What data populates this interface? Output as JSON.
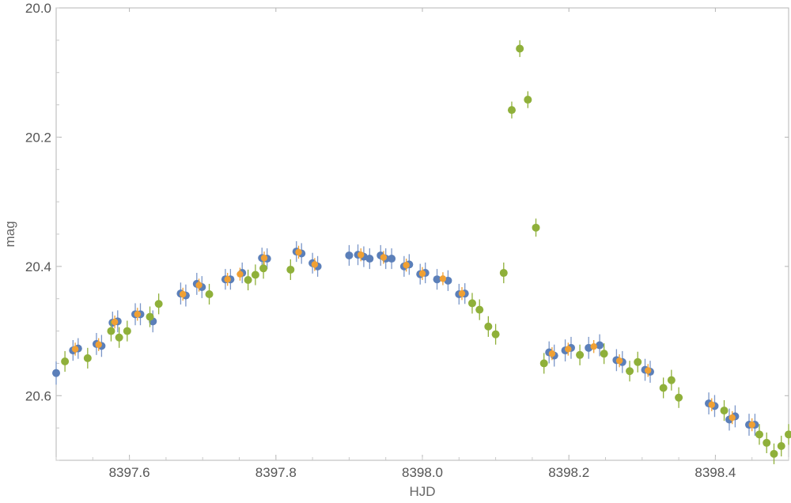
{
  "chart_data": {
    "type": "scatter",
    "title": "",
    "xlabel": "HJD",
    "ylabel": "mag",
    "xlim": [
      8397.5,
      8398.5
    ],
    "ylim": [
      20.0,
      20.7
    ],
    "y_reversed": true,
    "x_ticks": [
      {
        "value": 8397.6,
        "label": "8397.6"
      },
      {
        "value": 8397.8,
        "label": "8397.8"
      },
      {
        "value": 8398.0,
        "label": "8398.0"
      },
      {
        "value": 8398.2,
        "label": "8398.2"
      },
      {
        "value": 8398.4,
        "label": "8398.4"
      }
    ],
    "y_ticks": [
      {
        "value": 20.0,
        "label": "20.0"
      },
      {
        "value": 20.2,
        "label": "20.2"
      },
      {
        "value": 20.4,
        "label": "20.4"
      },
      {
        "value": 20.6,
        "label": "20.6"
      }
    ],
    "grid": false,
    "series": [
      {
        "color": "#5b7fb9",
        "errorbar_color": "#7a96c8",
        "x": [
          8397.5,
          8397.523,
          8397.53,
          8397.555,
          8397.562,
          8397.577,
          8397.584,
          8397.608,
          8397.615,
          8397.632,
          8397.67,
          8397.677,
          8397.692,
          8397.699,
          8397.731,
          8397.738,
          8397.754,
          8397.781,
          8397.788,
          8397.828,
          8397.835,
          8397.85,
          8397.857,
          8397.9,
          8397.912,
          8397.92,
          8397.928,
          8397.943,
          8397.95,
          8397.958,
          8397.975,
          8397.982,
          8397.997,
          8398.004,
          8398.02,
          8398.035,
          8398.05,
          8398.058,
          8398.173,
          8398.18,
          8398.195,
          8398.203,
          8398.227,
          8398.242,
          8398.265,
          8398.273,
          8398.304,
          8398.311,
          8398.391,
          8398.399,
          8398.419,
          8398.427,
          8398.446,
          8398.454
        ],
        "y": [
          20.565,
          20.53,
          20.527,
          20.52,
          20.523,
          20.487,
          20.485,
          20.474,
          20.474,
          20.485,
          20.442,
          20.445,
          20.427,
          20.432,
          20.42,
          20.42,
          20.41,
          20.387,
          20.388,
          20.377,
          20.38,
          20.395,
          20.4,
          20.383,
          20.382,
          20.385,
          20.388,
          20.383,
          20.388,
          20.388,
          20.4,
          20.397,
          20.412,
          20.41,
          20.42,
          20.422,
          20.443,
          20.442,
          20.533,
          20.538,
          20.53,
          20.526,
          20.526,
          20.522,
          20.545,
          20.548,
          20.56,
          20.563,
          20.612,
          20.616,
          20.637,
          20.632,
          20.645,
          20.645
        ],
        "err": [
          0.018,
          0.016,
          0.016,
          0.017,
          0.017,
          0.017,
          0.017,
          0.017,
          0.017,
          0.017,
          0.017,
          0.017,
          0.017,
          0.017,
          0.016,
          0.016,
          0.016,
          0.016,
          0.016,
          0.016,
          0.016,
          0.016,
          0.016,
          0.016,
          0.016,
          0.016,
          0.016,
          0.016,
          0.016,
          0.016,
          0.016,
          0.016,
          0.016,
          0.016,
          0.016,
          0.016,
          0.016,
          0.016,
          0.017,
          0.017,
          0.017,
          0.017,
          0.017,
          0.017,
          0.017,
          0.017,
          0.017,
          0.017,
          0.017,
          0.017,
          0.017,
          0.017,
          0.017,
          0.017
        ]
      },
      {
        "color": "#f0a033",
        "errorbar_color": "#f0a033",
        "x": [
          8397.526,
          8397.558,
          8397.58,
          8397.611,
          8397.673,
          8397.695,
          8397.734,
          8397.751,
          8397.784,
          8397.831,
          8397.853,
          8397.916,
          8397.947,
          8397.978,
          8398.0,
          8398.028,
          8398.054,
          8398.177,
          8398.199,
          8398.234,
          8398.269,
          8398.308,
          8398.395,
          8398.423,
          8398.45
        ],
        "y": [
          20.528,
          20.521,
          20.486,
          20.474,
          20.443,
          20.429,
          20.42,
          20.412,
          20.387,
          20.378,
          20.397,
          20.382,
          20.386,
          20.398,
          20.411,
          20.419,
          20.442,
          20.535,
          20.528,
          20.524,
          20.546,
          20.561,
          20.614,
          20.634,
          20.645
        ],
        "err": [
          0.01,
          0.01,
          0.01,
          0.01,
          0.01,
          0.01,
          0.01,
          0.01,
          0.01,
          0.01,
          0.01,
          0.01,
          0.01,
          0.01,
          0.01,
          0.01,
          0.01,
          0.01,
          0.01,
          0.01,
          0.01,
          0.01,
          0.01,
          0.01,
          0.01
        ]
      },
      {
        "color": "#8fb03a",
        "errorbar_color": "#8fb03a",
        "x": [
          8397.512,
          8397.543,
          8397.575,
          8397.586,
          8397.597,
          8397.64,
          8397.628,
          8397.709,
          8397.762,
          8397.772,
          8397.783,
          8397.82,
          8398.09,
          8398.1,
          8398.111,
          8398.078,
          8398.068,
          8398.122,
          8398.133,
          8398.144,
          8398.155,
          8398.166,
          8398.215,
          8398.248,
          8398.283,
          8398.294,
          8398.329,
          8398.34,
          8398.35,
          8398.412,
          8398.46,
          8398.47,
          8398.48,
          8398.49,
          8398.5
        ],
        "y": [
          20.547,
          20.542,
          20.5,
          20.51,
          20.5,
          20.458,
          20.478,
          20.443,
          20.421,
          20.413,
          20.403,
          20.405,
          20.493,
          20.505,
          20.41,
          20.467,
          20.457,
          20.158,
          20.063,
          20.142,
          20.34,
          20.55,
          20.537,
          20.535,
          20.562,
          20.548,
          20.588,
          20.576,
          20.603,
          20.623,
          20.66,
          20.673,
          20.69,
          20.678,
          20.66
        ],
        "err": [
          0.016,
          0.016,
          0.016,
          0.016,
          0.016,
          0.016,
          0.016,
          0.016,
          0.016,
          0.016,
          0.016,
          0.016,
          0.016,
          0.016,
          0.016,
          0.016,
          0.016,
          0.013,
          0.013,
          0.013,
          0.014,
          0.016,
          0.016,
          0.016,
          0.016,
          0.016,
          0.016,
          0.016,
          0.016,
          0.016,
          0.016,
          0.016,
          0.016,
          0.016,
          0.016
        ]
      }
    ]
  }
}
